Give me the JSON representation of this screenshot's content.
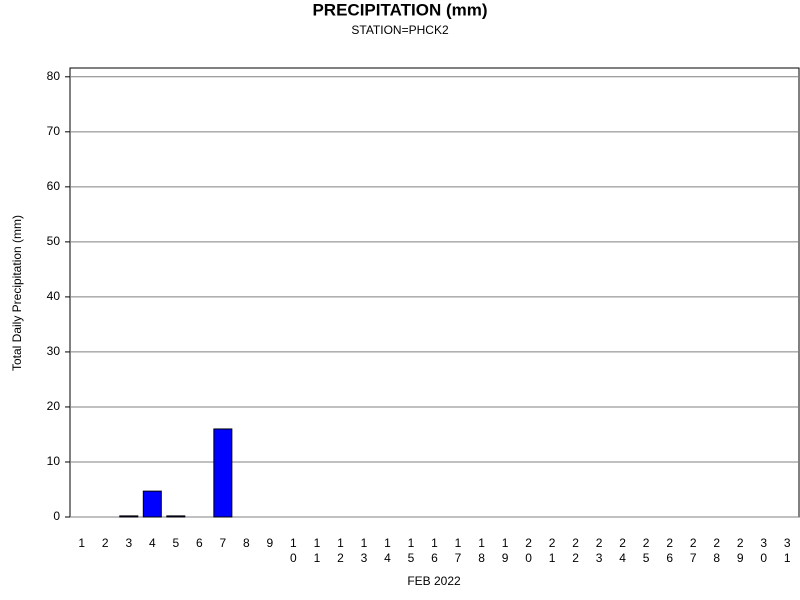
{
  "chart_data": {
    "type": "bar",
    "title": "PRECIPITATION (mm)",
    "subtitle": "STATION=PHCK2",
    "y_label": "Total Daily Precipitation (mm)",
    "x_label": "FEB 2022",
    "categories": [
      "1",
      "2",
      "3",
      "4",
      "5",
      "6",
      "7",
      "8",
      "9",
      "10",
      "11",
      "12",
      "13",
      "14",
      "15",
      "16",
      "17",
      "18",
      "19",
      "20",
      "21",
      "22",
      "23",
      "24",
      "25",
      "26",
      "27",
      "28",
      "29",
      "30",
      "31"
    ],
    "values": [
      0,
      0,
      0.2,
      4.7,
      0.2,
      0,
      16,
      0,
      0,
      0,
      0,
      0,
      0,
      0,
      0,
      0,
      0,
      0,
      0,
      0,
      0,
      0,
      0,
      0,
      0,
      0,
      0,
      0,
      null,
      null,
      null
    ],
    "color": "#0000ff",
    "ylim": [
      0,
      81.6
    ],
    "yticks": [
      0,
      10,
      20,
      30,
      40,
      50,
      60,
      70,
      80
    ],
    "grid": true
  }
}
